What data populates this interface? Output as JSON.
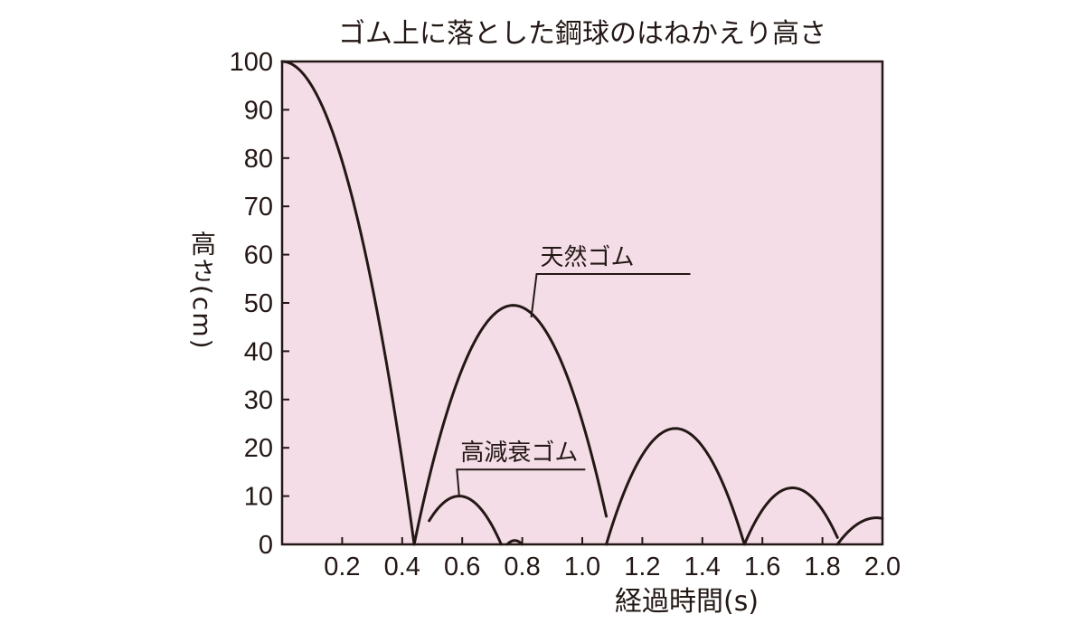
{
  "chart_data": {
    "type": "line",
    "title": "ゴム上に落とした鋼球のはねかえり高さ",
    "xlabel": "経過時間(s)",
    "ylabel": "高さ(cm)",
    "xlim": [
      0,
      2.0
    ],
    "ylim": [
      0,
      100
    ],
    "x_ticks": [
      0.2,
      0.4,
      0.6,
      0.8,
      1.0,
      1.2,
      1.4,
      1.6,
      1.8,
      2.0
    ],
    "x_tick_labels": [
      "0.2",
      "0.4",
      "0.6",
      "0.8",
      "1.0",
      "1.2",
      "1.4",
      "1.6",
      "1.8",
      "2.0"
    ],
    "y_ticks": [
      0,
      10,
      20,
      30,
      40,
      50,
      60,
      70,
      80,
      90,
      100
    ],
    "y_tick_labels": [
      "0",
      "10",
      "20",
      "30",
      "40",
      "50",
      "60",
      "70",
      "80",
      "90",
      "100"
    ],
    "grid": false,
    "background_color": "#f5dde8",
    "line_color": "#231815",
    "series": [
      {
        "name": "天然ゴム",
        "segments": [
          {
            "x_start": 0.0,
            "x_end": 0.44,
            "peak_x": 0.0,
            "peak_y": 100
          },
          {
            "x_start": 0.44,
            "x_end": 1.08,
            "peak_x": 0.77,
            "peak_y": 49.5
          },
          {
            "x_start": 1.08,
            "x_end": 1.54,
            "peak_x": 1.31,
            "peak_y": 24
          },
          {
            "x_start": 1.54,
            "x_end": 1.85,
            "peak_x": 1.7,
            "peak_y": 11.7
          },
          {
            "x_start": 1.85,
            "x_end": 2.0,
            "peak_x": 1.98,
            "peak_y": 5.5
          }
        ]
      },
      {
        "name": "高減衰ゴム",
        "segments": [
          {
            "x_start": 0.49,
            "x_end": 0.73,
            "peak_x": 0.59,
            "peak_y": 10
          },
          {
            "x_start": 0.75,
            "x_end": 0.8,
            "peak_x": 0.775,
            "peak_y": 0.8
          }
        ]
      }
    ],
    "annotations": [
      {
        "text": "天然ゴム",
        "series": "天然ゴム",
        "point": [
          0.83,
          47
        ],
        "label_at": [
          1.36,
          56
        ]
      },
      {
        "text": "高減衰ゴム",
        "series": "高減衰ゴム",
        "point": [
          0.59,
          10
        ],
        "label_at": [
          1.01,
          15.5
        ]
      }
    ]
  }
}
